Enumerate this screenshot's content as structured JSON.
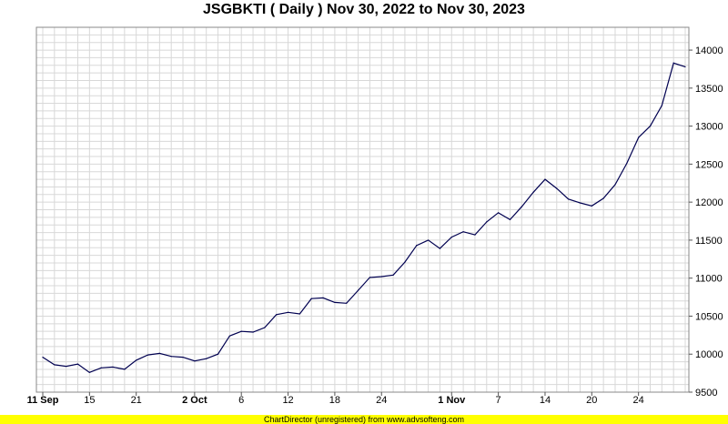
{
  "footer_text": "ChartDirector (unregistered) from www.advsofteng.com",
  "chart_data": {
    "type": "line",
    "title": "JSGBKTI ( Daily ) Nov 30, 2022 to Nov 30, 2023",
    "xlabel": "",
    "ylabel": "",
    "ylim": [
      9500,
      14300
    ],
    "y_ticks": [
      9500,
      10000,
      10500,
      11000,
      11500,
      12000,
      12500,
      13000,
      13500,
      14000
    ],
    "grid": true,
    "line_color": "#000050",
    "x_tick_labels": [
      {
        "index": 0,
        "label": "11 Sep",
        "bold": true
      },
      {
        "index": 4,
        "label": "15",
        "bold": false
      },
      {
        "index": 8,
        "label": "21",
        "bold": false
      },
      {
        "index": 13,
        "label": "2 Oct",
        "bold": true
      },
      {
        "index": 17,
        "label": "6",
        "bold": false
      },
      {
        "index": 21,
        "label": "12",
        "bold": false
      },
      {
        "index": 25,
        "label": "18",
        "bold": false
      },
      {
        "index": 29,
        "label": "24",
        "bold": false
      },
      {
        "index": 35,
        "label": "1 Nov",
        "bold": true
      },
      {
        "index": 39,
        "label": "7",
        "bold": false
      },
      {
        "index": 43,
        "label": "14",
        "bold": false
      },
      {
        "index": 47,
        "label": "20",
        "bold": false
      },
      {
        "index": 51,
        "label": "24",
        "bold": false
      }
    ],
    "series": [
      {
        "values": [
          9960,
          9860,
          9840,
          9870,
          9760,
          9820,
          9830,
          9800,
          9920,
          9990,
          10010,
          9970,
          9960,
          9910,
          9940,
          10000,
          10240,
          10300,
          10290,
          10350,
          10520,
          10550,
          10530,
          10730,
          10740,
          10680,
          10670,
          10840,
          11010,
          11020,
          11040,
          11210,
          11430,
          11500,
          11390,
          11540,
          11610,
          11570,
          11740,
          11860,
          11770,
          11940,
          12130,
          12300,
          12180,
          12040,
          11990,
          11950,
          12050,
          12230,
          12510,
          12850,
          13000,
          13270,
          13830,
          13780
        ]
      }
    ]
  }
}
